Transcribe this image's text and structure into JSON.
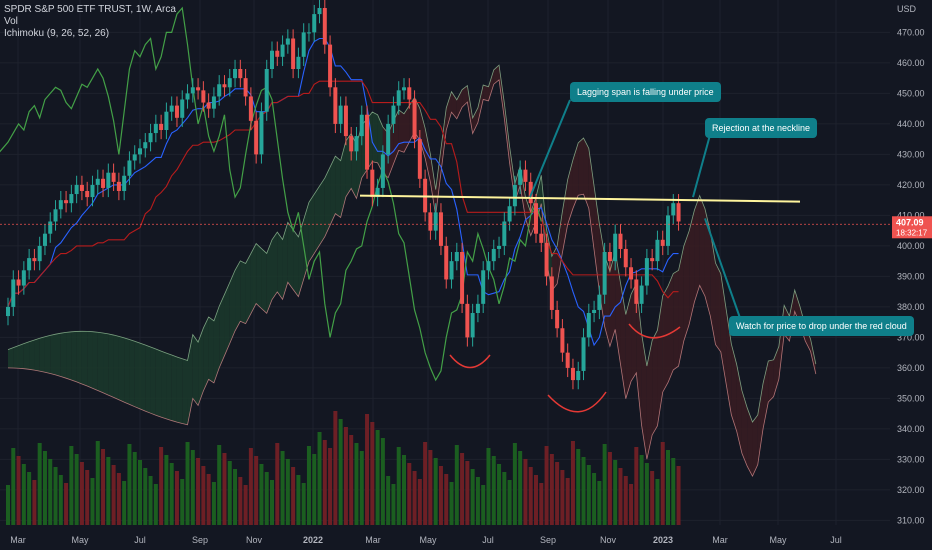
{
  "header": {
    "symbol": "SPDR S&P 500 ETF TRUST, 1W, Arca",
    "vol_label": "Vol",
    "ichimoku_label": "Ichimoku (9, 26, 52, 26)"
  },
  "price_tag": {
    "value": "407.09",
    "timer": "18:32:17"
  },
  "currency": "USD",
  "callouts": {
    "lagging": "Lagging span is falling under price",
    "neckline": "Rejection at the neckline",
    "cloud": "Watch for price to drop under the red cloud"
  },
  "colors": {
    "up": "#26a69a",
    "down": "#ef5350",
    "bg": "#131722",
    "tenkan": "#2962ff",
    "kijun": "#b71c1c",
    "lagging": "#43a047",
    "cloud_green": "#1b3a2b",
    "cloud_red": "#3a1c22",
    "neckline": "#fff59d",
    "callout": "#0f7f8a",
    "annotation": "#e53935"
  },
  "chart_data": {
    "type": "candlestick",
    "interval": "1W",
    "ylim": [
      305,
      478
    ],
    "y_ticks": [
      "470.00",
      "460.00",
      "450.00",
      "440.00",
      "430.00",
      "420.00",
      "410.00",
      "400.00",
      "390.00",
      "380.00",
      "370.00",
      "360.00",
      "350.00",
      "340.00",
      "330.00",
      "320.00",
      "310.00"
    ],
    "x_ticks": [
      "Mar",
      "May",
      "Jul",
      "Sep",
      "Nov",
      "2022",
      "Mar",
      "May",
      "Jul",
      "Sep",
      "Nov",
      "2023",
      "Mar",
      "May",
      "Jul"
    ],
    "last_price": 407.09,
    "neckline_level": 415
  }
}
